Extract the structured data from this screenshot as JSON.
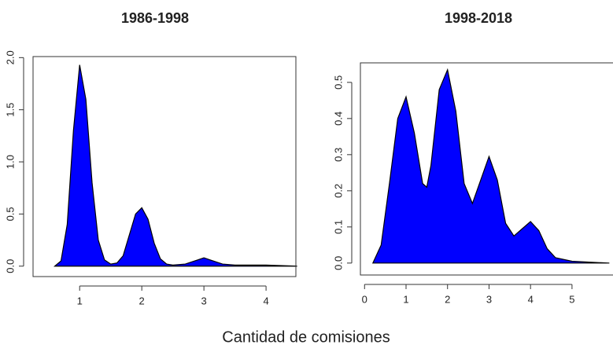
{
  "chart_data": [
    {
      "type": "area",
      "title": "1986-1998",
      "color": "#0000ff",
      "x": [
        0.6,
        0.7,
        0.8,
        0.9,
        1.0,
        1.1,
        1.2,
        1.3,
        1.4,
        1.5,
        1.6,
        1.7,
        1.8,
        1.9,
        2.0,
        2.1,
        2.2,
        2.3,
        2.4,
        2.5,
        2.7,
        2.9,
        3.0,
        3.1,
        3.3,
        3.5,
        4.0,
        4.5
      ],
      "values": [
        0,
        0.05,
        0.4,
        1.3,
        1.93,
        1.6,
        0.8,
        0.25,
        0.06,
        0.02,
        0.03,
        0.1,
        0.3,
        0.5,
        0.56,
        0.45,
        0.22,
        0.07,
        0.02,
        0.01,
        0.02,
        0.06,
        0.08,
        0.06,
        0.02,
        0.01,
        0.01,
        0
      ],
      "xlim": [
        0.25,
        4.48
      ],
      "ylim": [
        -0.1,
        2.01
      ],
      "xticks": [
        1,
        2,
        3,
        4
      ],
      "yticks": [
        {
          "value": 0,
          "label": "0.0"
        },
        {
          "value": 0.5,
          "label": "0.5"
        },
        {
          "value": 1,
          "label": "1.0"
        },
        {
          "value": 1.5,
          "label": "1.5"
        },
        {
          "value": 2,
          "label": "2.0"
        }
      ]
    },
    {
      "type": "area",
      "title": "1998-2018",
      "color": "#0000ff",
      "x": [
        0.2,
        0.4,
        0.6,
        0.8,
        1.0,
        1.2,
        1.4,
        1.5,
        1.6,
        1.8,
        2.0,
        2.2,
        2.4,
        2.6,
        2.8,
        3.0,
        3.2,
        3.4,
        3.6,
        3.8,
        4.0,
        4.2,
        4.4,
        4.6,
        5.0,
        5.5,
        5.9
      ],
      "values": [
        0,
        0.05,
        0.22,
        0.4,
        0.46,
        0.36,
        0.22,
        0.21,
        0.27,
        0.48,
        0.535,
        0.42,
        0.22,
        0.165,
        0.23,
        0.295,
        0.23,
        0.11,
        0.075,
        0.095,
        0.115,
        0.09,
        0.04,
        0.015,
        0.005,
        0.002,
        0
      ],
      "xlim": [
        -0.1,
        5.95
      ],
      "ylim": [
        -0.033,
        0.554
      ],
      "xticks": [
        0,
        1,
        2,
        3,
        4,
        5
      ],
      "yticks": [
        {
          "value": 0,
          "label": "0.0"
        },
        {
          "value": 0.1,
          "label": "0.1"
        },
        {
          "value": 0.2,
          "label": "0.2"
        },
        {
          "value": 0.3,
          "label": "0.3"
        },
        {
          "value": 0.4,
          "label": "0.4"
        },
        {
          "value": 0.5,
          "label": "0.5"
        }
      ]
    }
  ],
  "xlabel": "Cantidad de comisiones"
}
